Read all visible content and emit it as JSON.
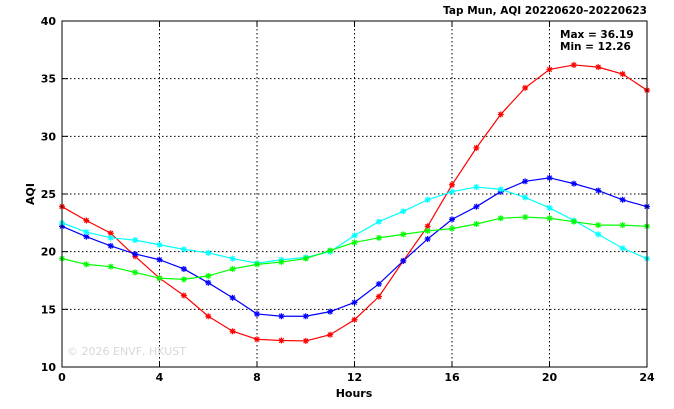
{
  "chart_data": {
    "type": "line",
    "title": "Tap Mun, AQI 20220620–20220623",
    "xlabel": "Hours",
    "ylabel": "AQI",
    "xlim": [
      0,
      24
    ],
    "ylim": [
      10,
      40
    ],
    "xticks": [
      0,
      4,
      8,
      12,
      16,
      20,
      24
    ],
    "yticks": [
      10,
      15,
      20,
      25,
      30,
      35,
      40
    ],
    "grid": true,
    "annotations": [
      "Max = 36.19",
      "Min = 12.26"
    ],
    "watermark": "© 2026 ENVF, HKUST",
    "x": [
      0,
      1,
      2,
      3,
      4,
      5,
      6,
      7,
      8,
      9,
      10,
      11,
      12,
      13,
      14,
      15,
      16,
      17,
      18,
      19,
      20,
      21,
      22,
      23,
      24
    ],
    "series": [
      {
        "color": "#ff0000",
        "values": [
          23.9,
          22.7,
          21.6,
          19.6,
          17.7,
          16.2,
          14.4,
          13.1,
          12.4,
          12.3,
          12.26,
          12.8,
          14.1,
          16.1,
          19.2,
          22.2,
          25.8,
          29.0,
          31.9,
          34.2,
          35.8,
          36.19,
          36.0,
          35.4,
          34.0
        ]
      },
      {
        "color": "#0000ff",
        "values": [
          22.2,
          21.3,
          20.5,
          19.8,
          19.3,
          18.5,
          17.3,
          16.0,
          14.6,
          14.4,
          14.4,
          14.8,
          15.6,
          17.2,
          19.2,
          21.1,
          22.8,
          23.9,
          25.2,
          26.1,
          26.4,
          25.9,
          25.3,
          24.5,
          23.9
        ]
      },
      {
        "color": "#00ffff",
        "values": [
          22.5,
          21.7,
          21.2,
          21.0,
          20.6,
          20.2,
          19.9,
          19.4,
          19.0,
          19.3,
          19.5,
          20.0,
          21.4,
          22.6,
          23.5,
          24.5,
          25.2,
          25.6,
          25.4,
          24.7,
          23.8,
          22.7,
          21.5,
          20.3,
          19.4
        ]
      },
      {
        "color": "#00ff00",
        "values": [
          19.4,
          18.9,
          18.7,
          18.2,
          17.7,
          17.6,
          17.9,
          18.5,
          18.9,
          19.1,
          19.4,
          20.1,
          20.8,
          21.2,
          21.5,
          21.8,
          22.0,
          22.4,
          22.9,
          23.0,
          22.9,
          22.6,
          22.3,
          22.3,
          22.2
        ]
      }
    ]
  }
}
